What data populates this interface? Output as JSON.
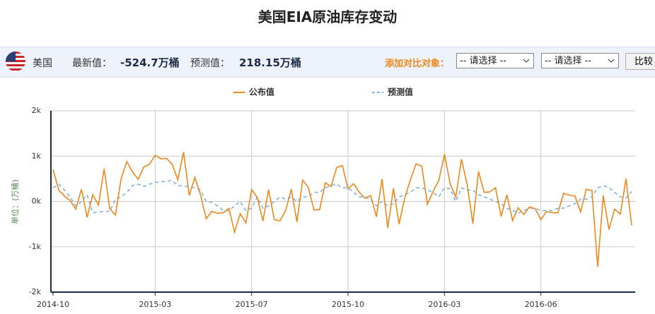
{
  "header": {
    "title": "美国EIA原油库存变动"
  },
  "toolbar": {
    "country": "美国",
    "latest_label": "最新值：",
    "latest_value": "-524.7万桶",
    "forecast_label": "预测值：",
    "forecast_value": "218.15万桶",
    "compare_label": "添加对比对象：",
    "select_1": "-- 请选择 --",
    "select_2": "-- 请选择 --",
    "button": "比较"
  },
  "chart_data": {
    "type": "line",
    "y_label": "单位：(万桶)",
    "categories": [
      "2014-10",
      null,
      null,
      null,
      null,
      null,
      null,
      null,
      null,
      null,
      null,
      null,
      null,
      null,
      null,
      null,
      null,
      null,
      "2015-03",
      null,
      null,
      null,
      null,
      null,
      null,
      null,
      null,
      null,
      null,
      null,
      null,
      null,
      null,
      null,
      null,
      "2015-07",
      null,
      null,
      null,
      null,
      null,
      null,
      null,
      null,
      null,
      null,
      null,
      null,
      null,
      null,
      null,
      null,
      "2015-10",
      null,
      null,
      null,
      null,
      null,
      null,
      null,
      null,
      null,
      null,
      null,
      null,
      null,
      null,
      null,
      null,
      "2016-03",
      null,
      null,
      null,
      null,
      null,
      null,
      null,
      null,
      null,
      null,
      null,
      null,
      null,
      null,
      null,
      null,
      "2016-06",
      null,
      null,
      null,
      null,
      null,
      null,
      null,
      null,
      null,
      null,
      null,
      null,
      null,
      null,
      null,
      null
    ],
    "series": [
      {
        "name": "公布值",
        "color": "#f0871a",
        "dashed": false,
        "values": [
          710,
          250,
          120,
          20,
          -170,
          270,
          -350,
          150,
          -80,
          720,
          -160,
          -300,
          500,
          880,
          650,
          490,
          760,
          820,
          1020,
          940,
          950,
          820,
          480,
          1090,
          130,
          530,
          150,
          -380,
          -220,
          -260,
          -250,
          -150,
          -680,
          -270,
          -470,
          260,
          90,
          -430,
          260,
          -400,
          -430,
          -200,
          270,
          -450,
          470,
          310,
          -190,
          -180,
          410,
          330,
          750,
          790,
          280,
          390,
          200,
          70,
          130,
          -340,
          490,
          -580,
          290,
          -500,
          80,
          480,
          830,
          780,
          -60,
          220,
          460,
          1040,
          390,
          100,
          930,
          380,
          -490,
          660,
          200,
          210,
          300,
          -330,
          150,
          -420,
          -140,
          -290,
          -120,
          -160,
          -400,
          -220,
          -250,
          -250,
          180,
          140,
          120,
          -230,
          270,
          240,
          -1440,
          130,
          -620,
          -170,
          -280,
          500,
          -524.7
        ]
      },
      {
        "name": "预测值",
        "color": "#7fb2e5",
        "dashed": true,
        "values": [
          300,
          380,
          250,
          100,
          -100,
          0,
          150,
          -250,
          -230,
          -220,
          -220,
          50,
          100,
          200,
          350,
          380,
          330,
          380,
          420,
          430,
          450,
          460,
          350,
          340,
          320,
          300,
          250,
          0,
          -20,
          -100,
          -200,
          -200,
          -100,
          0,
          -200,
          -150,
          100,
          -150,
          -100,
          0,
          100,
          50,
          100,
          0,
          100,
          100,
          200,
          200,
          300,
          350,
          380,
          300,
          300,
          200,
          100,
          100,
          50,
          -100,
          0,
          -100,
          -50,
          100,
          150,
          200,
          300,
          300,
          250,
          200,
          100,
          300,
          280,
          0,
          300,
          250,
          250,
          150,
          100,
          50,
          0,
          -50,
          -150,
          -200,
          -250,
          -200,
          -150,
          -150,
          -200,
          -200,
          -200,
          -150,
          -150,
          -100,
          -50,
          50,
          50,
          100,
          300,
          350,
          300,
          200,
          100,
          80,
          218.15
        ]
      }
    ],
    "ylim": [
      -2000,
      2000
    ],
    "yticks": [
      {
        "value": -2000,
        "label": "-2k"
      },
      {
        "value": -1000,
        "label": "-1k"
      },
      {
        "value": 0,
        "label": "0k"
      },
      {
        "value": 1000,
        "label": "1k"
      },
      {
        "value": 2000,
        "label": "2k"
      }
    ],
    "grid": true
  }
}
